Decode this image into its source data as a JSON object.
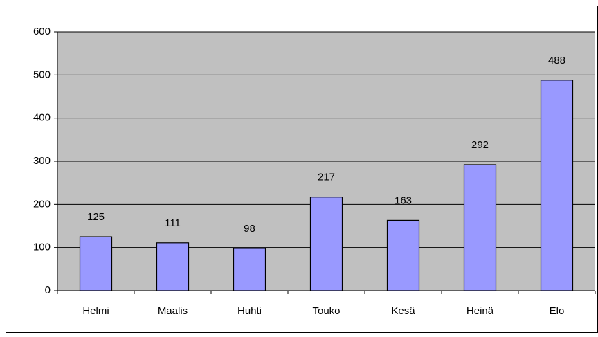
{
  "chart_data": {
    "type": "bar",
    "categories": [
      "Helmi",
      "Maalis",
      "Huhti",
      "Touko",
      "Kesä",
      "Heinä",
      "Elo"
    ],
    "values": [
      125,
      111,
      98,
      217,
      163,
      292,
      488
    ],
    "color": "#9999ff",
    "plot_background": "#c0c0c0",
    "ylim": [
      0,
      600
    ],
    "yticks": [
      0,
      100,
      200,
      300,
      400,
      500,
      600
    ],
    "grid": true,
    "data_labels": true
  }
}
